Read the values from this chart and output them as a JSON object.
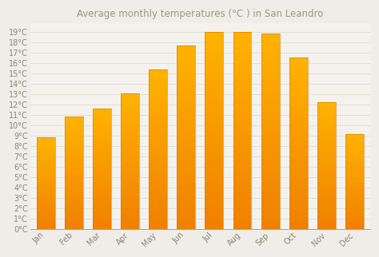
{
  "title": "Average monthly temperatures (°C ) in San Leandro",
  "months": [
    "Jan",
    "Feb",
    "Mar",
    "Apr",
    "May",
    "Jun",
    "Jul",
    "Aug",
    "Sep",
    "Oct",
    "Nov",
    "Dec"
  ],
  "values": [
    8.8,
    10.8,
    11.6,
    13.1,
    15.4,
    17.7,
    19.0,
    19.0,
    18.8,
    16.5,
    12.2,
    9.1
  ],
  "bar_color_top": "#FFB300",
  "bar_color_bottom": "#F08000",
  "bar_edge_color": "#CC7700",
  "background_color": "#F0EDE8",
  "plot_bg_color": "#F5F2EE",
  "grid_color": "#DDDDCC",
  "ytick_min": 0,
  "ytick_max": 19,
  "ytick_step": 1,
  "title_fontsize": 8.5,
  "tick_fontsize": 7,
  "text_color": "#888877",
  "title_color": "#999988"
}
